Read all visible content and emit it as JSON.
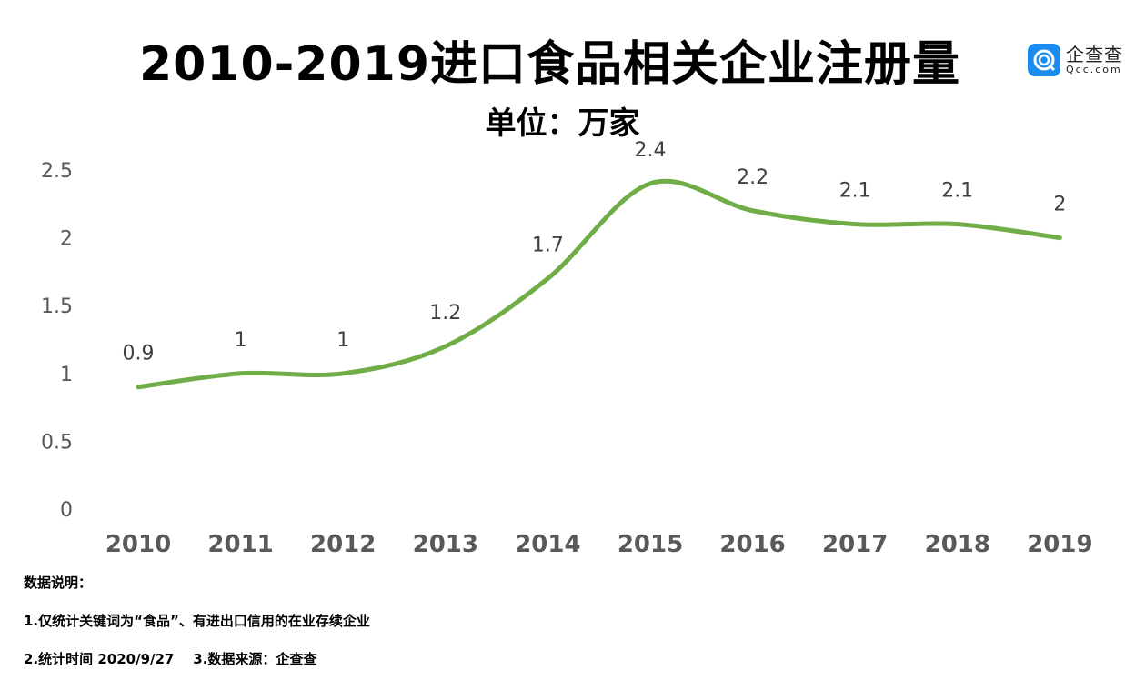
{
  "chart_data": {
    "type": "line",
    "title": "2010-2019进口食品相关企业注册量",
    "subtitle": "单位：万家",
    "categories": [
      "2010",
      "2011",
      "2012",
      "2013",
      "2014",
      "2015",
      "2016",
      "2017",
      "2018",
      "2019"
    ],
    "values": [
      0.9,
      1,
      1,
      1.2,
      1.7,
      2.4,
      2.2,
      2.1,
      2.1,
      2
    ],
    "data_labels": [
      "0.9",
      "1",
      "1",
      "1.2",
      "1.7",
      "2.4",
      "2.2",
      "2.1",
      "2.1",
      "2"
    ],
    "yticks": [
      "0",
      "0.5",
      "1",
      "1.5",
      "2",
      "2.5"
    ],
    "ylim": [
      0,
      2.5
    ],
    "grid": false,
    "smooth": true,
    "line_color": "#70ad47"
  },
  "logo": {
    "cn": "企查查",
    "en": "Qcc.com",
    "color": "#1a8cf0"
  },
  "notes": {
    "heading": "数据说明：",
    "line1": "1.仅统计关键词为“食品”、有进出口信用的在业存续企业",
    "line2": "2.统计时间 2020/9/27    3.数据来源：企查查"
  }
}
